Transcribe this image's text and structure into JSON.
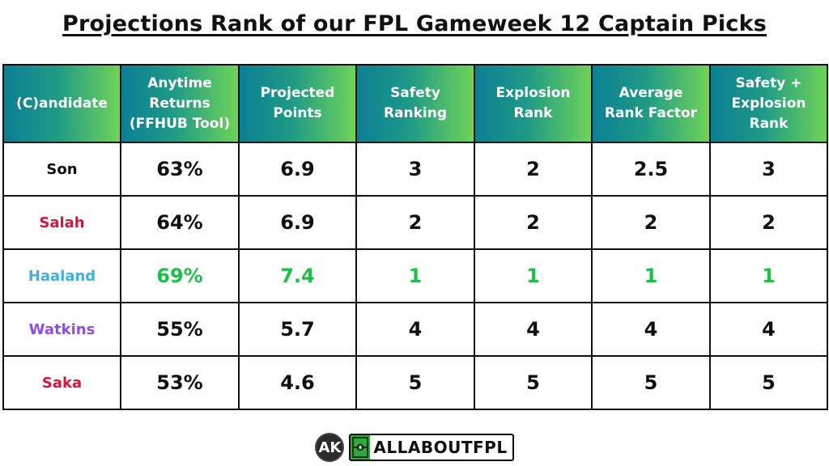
{
  "title": "Projections Rank of our FPL Gameweek 12 Captain Picks",
  "columns": [
    "(C)andidate",
    "Anytime\nReturns\n(FFHUB Tool)",
    "Projected\nPoints",
    "Safety\nRanking",
    "Explosion\nRank",
    "Average\nRank Factor",
    "Safety +\nExplosion\nRank"
  ],
  "rows": [
    {
      "name": "Son",
      "name_color": "#111111",
      "returns": "63%",
      "points": "6.9",
      "safety": "3",
      "explosion": "2",
      "average": "2.5",
      "combined": "3"
    },
    {
      "name": "Salah",
      "name_color": "#d4163c",
      "returns": "64%",
      "points": "6.9",
      "safety": "2",
      "explosion": "2",
      "average": "2",
      "combined": "2"
    },
    {
      "name": "Haaland",
      "name_color": "#3db1e6",
      "returns": "69%",
      "points": "7.4",
      "safety": "1",
      "explosion": "1",
      "average": "1",
      "combined": "1"
    },
    {
      "name": "Watkins",
      "name_color": "#8e4de8",
      "returns": "55%",
      "points": "5.7",
      "safety": "4",
      "explosion": "4",
      "average": "4",
      "combined": "4"
    },
    {
      "name": "Saka",
      "name_color": "#d4163c",
      "returns": "53%",
      "points": "4.6",
      "safety": "5",
      "explosion": "5",
      "average": "5",
      "combined": "5"
    }
  ],
  "highlight_color": "#1fbf4a",
  "footer": {
    "ak_logo": "AK",
    "brand": "ALLABOUTFPL"
  }
}
